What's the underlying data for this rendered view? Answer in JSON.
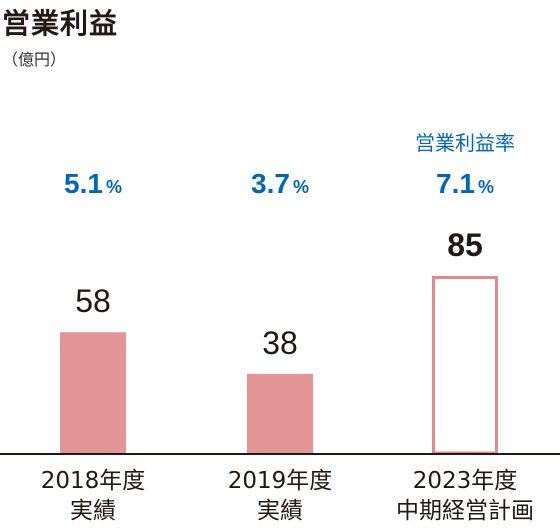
{
  "chart_data": {
    "type": "bar",
    "title": "営業利益",
    "unit": "（億円）",
    "categories": [
      {
        "line1": "2018年度",
        "line2": "実績"
      },
      {
        "line1": "2019年度",
        "line2": "実績"
      },
      {
        "line1": "2023年度",
        "line2": "中期経営計画"
      }
    ],
    "values": [
      58,
      38,
      85
    ],
    "margin_title": "営業利益率",
    "margins": [
      {
        "value": "5.1",
        "unit": "%"
      },
      {
        "value": "3.7",
        "unit": "%"
      },
      {
        "value": "7.1",
        "unit": "%"
      }
    ],
    "ylim": [
      0,
      85
    ],
    "colors": {
      "actual_fill": "#e39595",
      "plan_outline": "#e08a8a",
      "plan_fill": "#ffffff",
      "margin_text": "#0068b7",
      "axis": "#231815"
    }
  }
}
